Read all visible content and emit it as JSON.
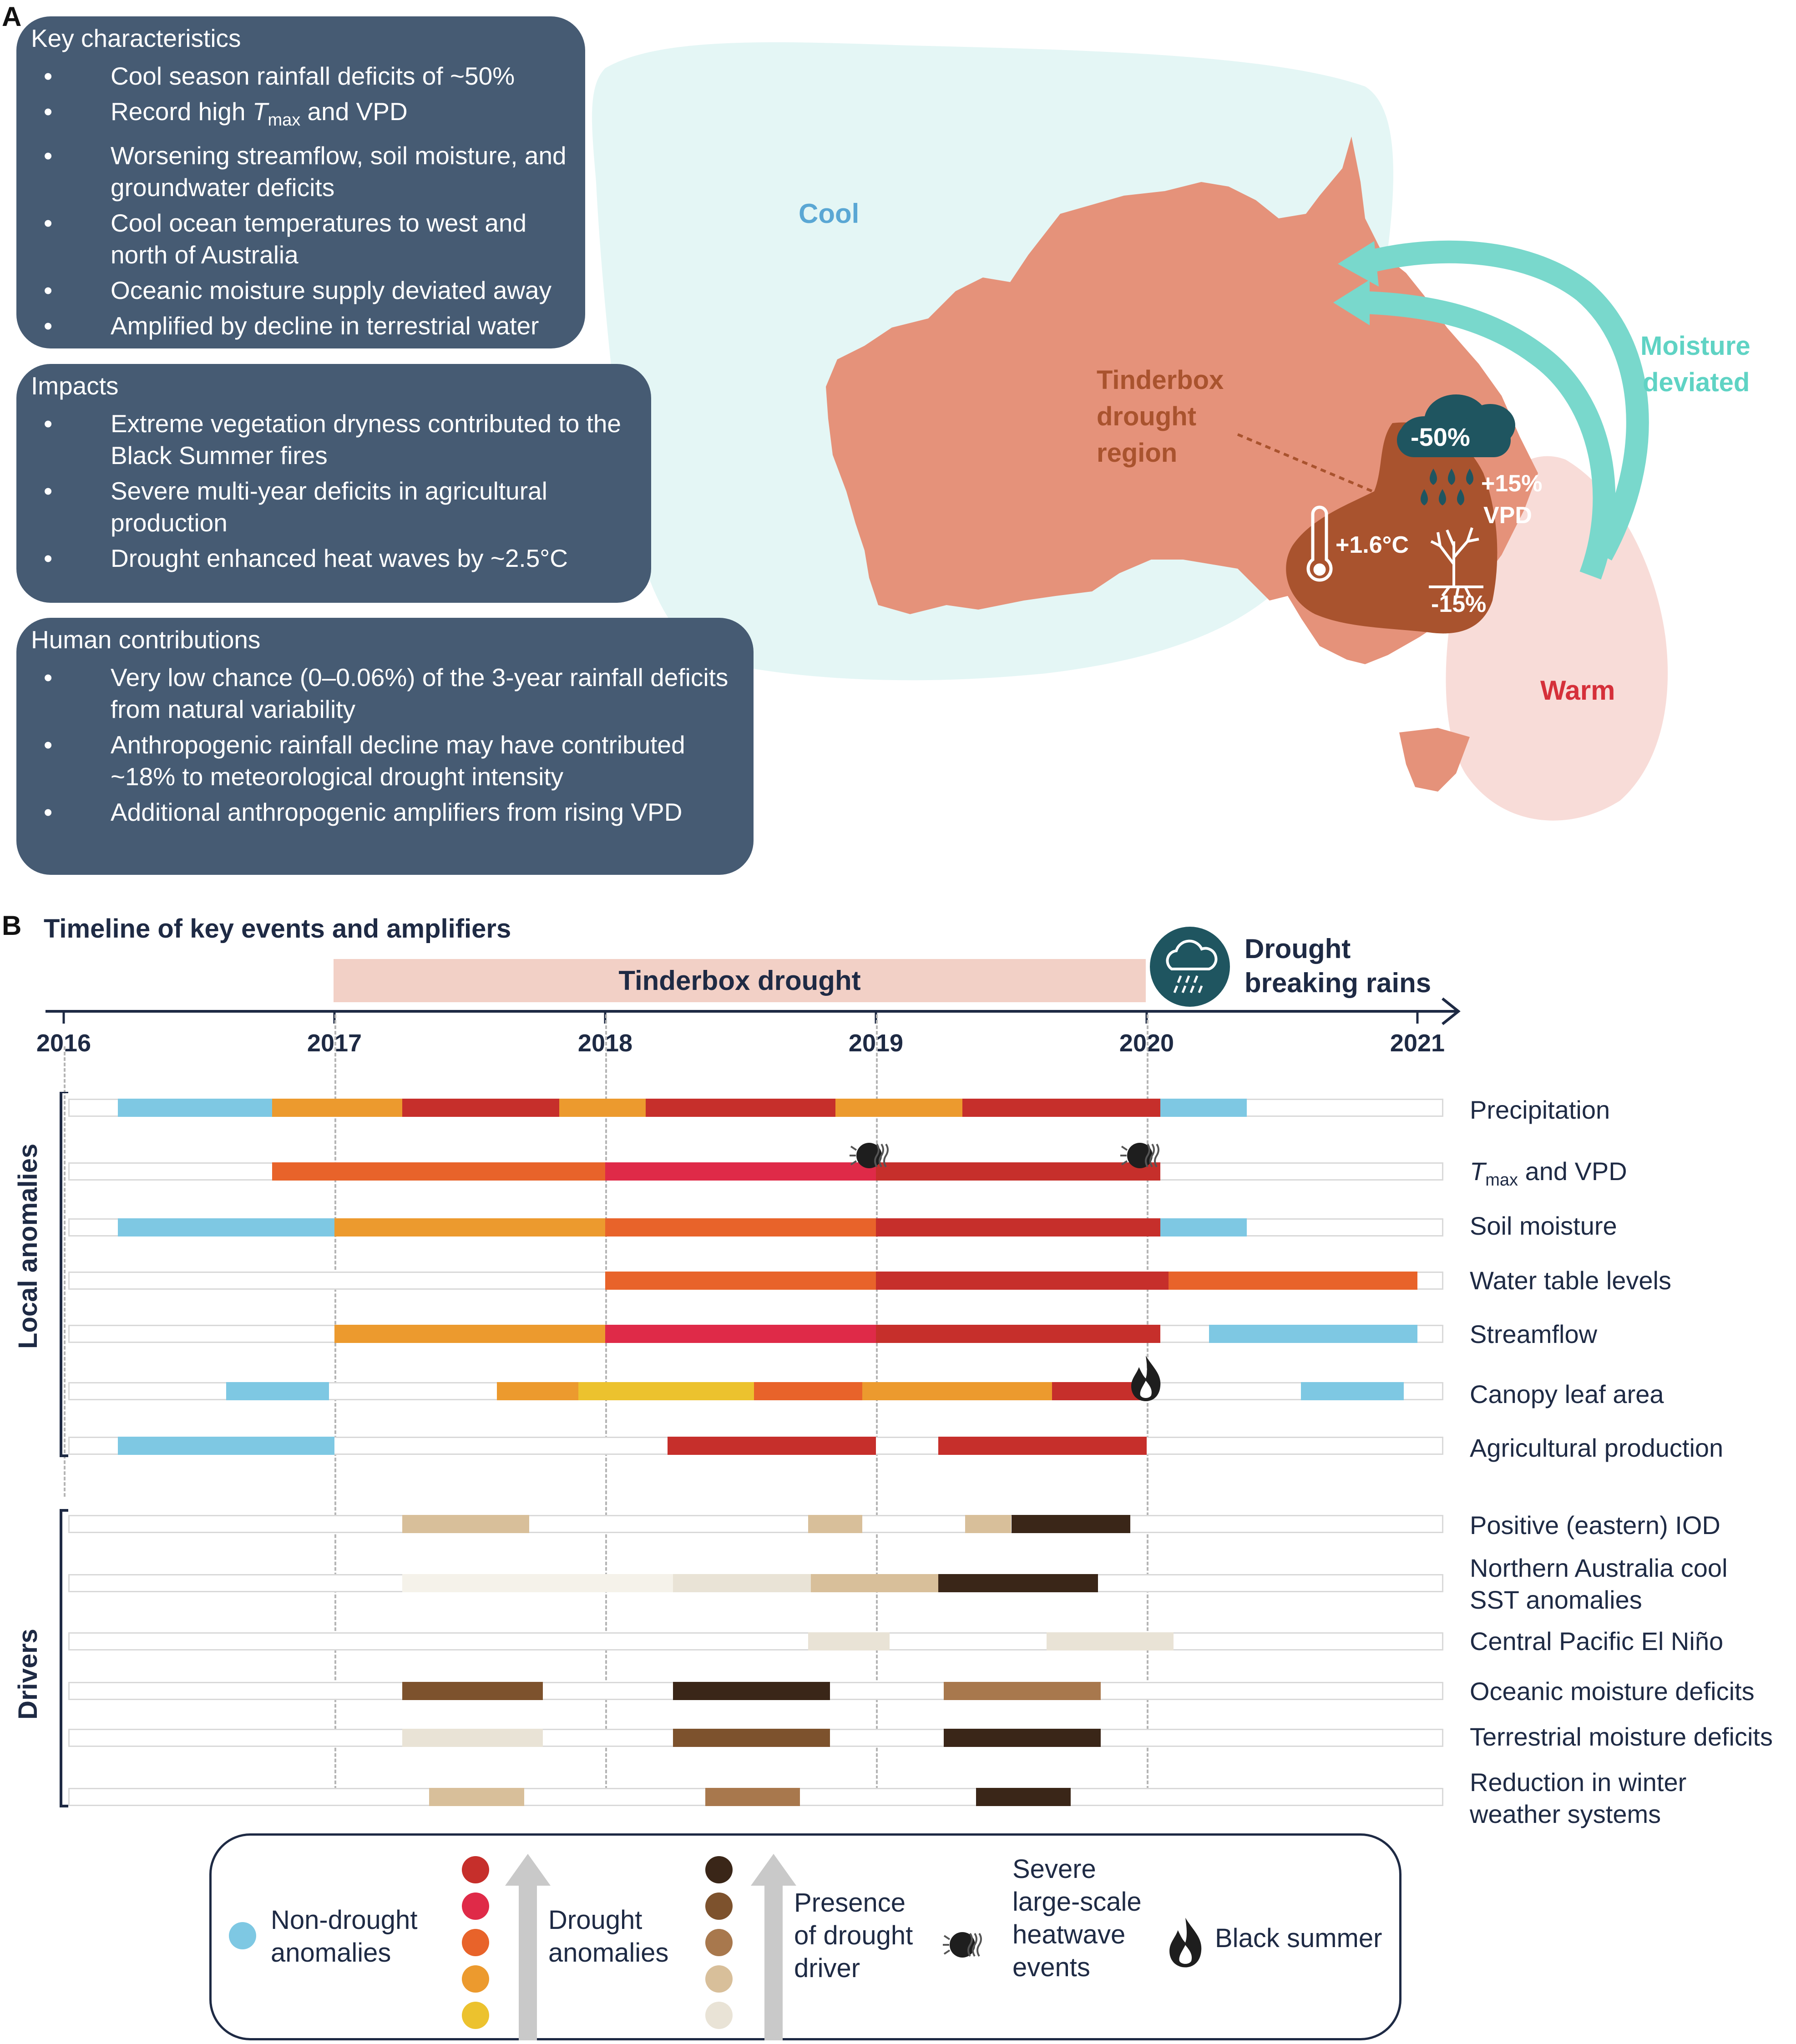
{
  "panel_a": {
    "letter": "A",
    "boxes": [
      {
        "title": "Key characteristics",
        "items": [
          "Cool season rainfall deficits of ~50%",
          "Record high",
          "Worsening streamflow, soil moisture, and groundwater deficits",
          "Cool ocean temperatures to west and north of Australia",
          "Oceanic moisture supply deviated away",
          "Amplified by decline in terrestrial water"
        ],
        "tmax_T": "T",
        "tmax_sub": "max",
        "tmax_rest": " and VPD"
      },
      {
        "title": "Impacts",
        "items": [
          "Extreme vegetation dryness contributed to the Black Summer fires",
          "Severe multi-year deficits in agricultural production",
          "Drought enhanced heat waves by ~2.5°C"
        ]
      },
      {
        "title": "Human contributions",
        "items": [
          "Very low  chance (0–0.06%) of the 3-year rainfall deficits from natural variability",
          "Anthropogenic rainfall decline may have contributed ~18% to meteorological drought intensity",
          "Additional anthropogenic amplifiers from rising VPD"
        ]
      }
    ],
    "map": {
      "cool_label": "Cool",
      "warm_label": "Warm",
      "moisture_label_1": "Moisture",
      "moisture_label_2": "deviated",
      "region_label_1": "Tinderbox",
      "region_label_2": "drought",
      "region_label_3": "region",
      "rain_change": "-50%",
      "vpd_change_1": "+15%",
      "vpd_change_2": "VPD",
      "temp_change": "+1.6°C",
      "veg_change": "-15%",
      "colors": {
        "cool_ocean": "#e4f6f5",
        "warm_ocean": "#f8dcd8",
        "land": "#e5927a",
        "region": "#a9532e",
        "arrow": "#79d8cc",
        "cloud": "#1f5560"
      }
    }
  },
  "panel_b": {
    "letter": "B",
    "title": "Timeline of key events and amplifiers",
    "tinderbox_label": "Tinderbox drought",
    "breaking_rains_1": "Drought",
    "breaking_rains_2": "breaking rains",
    "years": [
      "2016",
      "2017",
      "2018",
      "2019",
      "2020",
      "2021"
    ],
    "group_local": "Local anomalies",
    "group_drivers": "Drivers",
    "rows": [
      {
        "label": "Precipitation",
        "segments": [
          {
            "start": 2016.2,
            "end": 2016.77,
            "color": "#7ec8e3"
          },
          {
            "start": 2016.77,
            "end": 2017.25,
            "color": "#ec9a2e"
          },
          {
            "start": 2017.25,
            "end": 2017.83,
            "color": "#c62f2b"
          },
          {
            "start": 2017.83,
            "end": 2018.15,
            "color": "#ec9a2e"
          },
          {
            "start": 2018.15,
            "end": 2018.85,
            "color": "#c62f2b"
          },
          {
            "start": 2018.85,
            "end": 2019.32,
            "color": "#ec9a2e"
          },
          {
            "start": 2019.32,
            "end": 2020.05,
            "color": "#c62f2b"
          },
          {
            "start": 2020.05,
            "end": 2020.37,
            "color": "#7ec8e3"
          }
        ]
      },
      {
        "label": "and VPD",
        "label_T": "T",
        "label_sub": "max",
        "segments": [
          {
            "start": 2016.77,
            "end": 2018.0,
            "color": "#e8632a"
          },
          {
            "start": 2018.0,
            "end": 2019.0,
            "color": "#df2a48"
          },
          {
            "start": 2019.0,
            "end": 2020.05,
            "color": "#c62f2b"
          }
        ]
      },
      {
        "label": "Soil moisture",
        "segments": [
          {
            "start": 2016.2,
            "end": 2017.0,
            "color": "#7ec8e3"
          },
          {
            "start": 2017.0,
            "end": 2018.0,
            "color": "#ec9a2e"
          },
          {
            "start": 2018.0,
            "end": 2019.0,
            "color": "#e8632a"
          },
          {
            "start": 2019.0,
            "end": 2020.05,
            "color": "#c62f2b"
          },
          {
            "start": 2020.05,
            "end": 2020.37,
            "color": "#7ec8e3"
          }
        ]
      },
      {
        "label": "Water table levels",
        "segments": [
          {
            "start": 2018.0,
            "end": 2019.0,
            "color": "#e8632a"
          },
          {
            "start": 2019.0,
            "end": 2020.08,
            "color": "#c62f2b"
          },
          {
            "start": 2020.08,
            "end": 2021.0,
            "color": "#e8632a"
          }
        ]
      },
      {
        "label": "Streamflow",
        "segments": [
          {
            "start": 2017.0,
            "end": 2018.0,
            "color": "#ec9a2e"
          },
          {
            "start": 2018.0,
            "end": 2019.0,
            "color": "#df2a48"
          },
          {
            "start": 2019.0,
            "end": 2020.05,
            "color": "#c62f2b"
          },
          {
            "start": 2020.23,
            "end": 2021.0,
            "color": "#7ec8e3"
          }
        ]
      },
      {
        "label": "Canopy leaf area",
        "segments": [
          {
            "start": 2016.6,
            "end": 2016.98,
            "color": "#7ec8e3"
          },
          {
            "start": 2017.6,
            "end": 2017.9,
            "color": "#ec9a2e"
          },
          {
            "start": 2017.9,
            "end": 2018.55,
            "color": "#ecc22e"
          },
          {
            "start": 2018.55,
            "end": 2018.95,
            "color": "#e8632a"
          },
          {
            "start": 2018.95,
            "end": 2019.65,
            "color": "#ec9a2e"
          },
          {
            "start": 2019.65,
            "end": 2020.0,
            "color": "#c62f2b"
          },
          {
            "start": 2020.57,
            "end": 2020.95,
            "color": "#7ec8e3"
          }
        ]
      },
      {
        "label": "Agricultural production",
        "segments": [
          {
            "start": 2016.2,
            "end": 2017.0,
            "color": "#7ec8e3"
          },
          {
            "start": 2018.23,
            "end": 2019.0,
            "color": "#c62f2b"
          },
          {
            "start": 2019.23,
            "end": 2020.0,
            "color": "#c62f2b"
          }
        ]
      },
      {
        "label": "Positive (eastern) IOD",
        "segments": [
          {
            "start": 2017.25,
            "end": 2017.72,
            "color": "#d8bf9a"
          },
          {
            "start": 2018.75,
            "end": 2018.95,
            "color": "#d8bf9a"
          },
          {
            "start": 2019.33,
            "end": 2019.5,
            "color": "#d8bf9a"
          },
          {
            "start": 2019.5,
            "end": 2019.94,
            "color": "#3a2618"
          }
        ]
      },
      {
        "label": "Northern Australia cool",
        "label2": "SST anomalies",
        "segments": [
          {
            "start": 2017.25,
            "end": 2018.25,
            "color": "#f5f2ea"
          },
          {
            "start": 2018.25,
            "end": 2018.76,
            "color": "#e9e3d6"
          },
          {
            "start": 2018.76,
            "end": 2019.23,
            "color": "#d8bf9a"
          },
          {
            "start": 2019.23,
            "end": 2019.82,
            "color": "#3a2618"
          }
        ]
      },
      {
        "label": "Central Pacific El Niño",
        "segments": [
          {
            "start": 2018.75,
            "end": 2019.05,
            "color": "#e9e3d6"
          },
          {
            "start": 2019.63,
            "end": 2020.1,
            "color": "#e9e3d6"
          }
        ]
      },
      {
        "label": "Oceanic moisture deficits",
        "segments": [
          {
            "start": 2017.25,
            "end": 2017.77,
            "color": "#7d522d"
          },
          {
            "start": 2018.25,
            "end": 2018.83,
            "color": "#3a2618"
          },
          {
            "start": 2019.25,
            "end": 2019.83,
            "color": "#a8784d"
          }
        ]
      },
      {
        "label": "Terrestrial moisture deficits",
        "segments": [
          {
            "start": 2017.25,
            "end": 2017.77,
            "color": "#e9e3d6"
          },
          {
            "start": 2018.25,
            "end": 2018.83,
            "color": "#7d522d"
          },
          {
            "start": 2019.25,
            "end": 2019.83,
            "color": "#3a2618"
          }
        ]
      },
      {
        "label": "Reduction in winter",
        "label2": "weather systems",
        "segments": [
          {
            "start": 2017.35,
            "end": 2017.7,
            "color": "#d8bf9a"
          },
          {
            "start": 2018.37,
            "end": 2018.72,
            "color": "#a8784d"
          },
          {
            "start": 2019.37,
            "end": 2019.72,
            "color": "#3a2618"
          }
        ]
      }
    ],
    "legend": {
      "non_drought_1": "Non-drought",
      "non_drought_2": "anomalies",
      "drought_1": "Drought",
      "drought_2": "anomalies",
      "driver_1": "Presence",
      "driver_2": "of drought",
      "driver_3": "driver",
      "heatwave_1": "Severe",
      "heatwave_2": "large-scale",
      "heatwave_3": "heatwave",
      "heatwave_4": "events",
      "black_summer": "Black summer",
      "drought_colors": [
        "#c62f2b",
        "#df2a48",
        "#e8632a",
        "#ec9a2e",
        "#ecc22e"
      ],
      "driver_colors": [
        "#3a2618",
        "#7d522d",
        "#a8784d",
        "#d8bf9a",
        "#e9e3d6"
      ],
      "non_drought_color": "#7ec8e3"
    }
  }
}
